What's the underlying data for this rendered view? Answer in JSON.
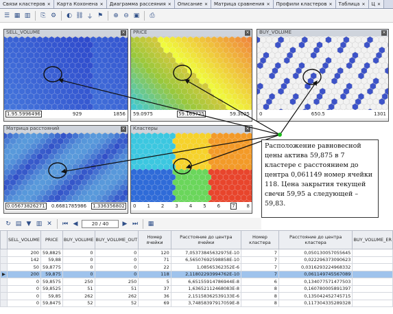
{
  "tabs": [
    {
      "label": "Связи кластеров"
    },
    {
      "label": "Карта Кохонена"
    },
    {
      "label": "Диаграмма рассеяния"
    },
    {
      "label": "Описание"
    },
    {
      "label": "Матрица сравнения"
    },
    {
      "label": "Профили кластеров"
    },
    {
      "label": "Таблица"
    },
    {
      "label": "Ц"
    }
  ],
  "maps": {
    "sell": {
      "title": "SELL_VOLUME",
      "min": "1.95.5996496",
      "mid": "929",
      "max": "1856"
    },
    "price": {
      "title": "PRICE",
      "min": "59.0975",
      "mid": "59.163725",
      "max": "59.3025"
    },
    "buy": {
      "title": "BUY_VOLUME",
      "min": "0",
      "mid": "650.5",
      "max": "1301"
    },
    "dist": {
      "title": "Матрица расстояний",
      "min": "0.05673826271",
      "mid": "0.6681785986",
      "max": "1.336356802"
    },
    "clusters": {
      "title": "Кластеры",
      "ticks": [
        "0",
        "1",
        "2",
        "3",
        "4",
        "5",
        "6",
        "7",
        "8"
      ],
      "selected": "7"
    }
  },
  "callout": {
    "text": "Расположение равновесной цены актива 59,875 в 7 кластере с расстоянием до центра 0,061149 номер ячейки 118. Цена закрытия текущей свечи 59,95 а следующей – 59,83."
  },
  "gridbar": {
    "page": "20 / 40"
  },
  "grid": {
    "headers": [
      "SELL_VOLUME",
      "PRICE",
      "BUY_VOLUME",
      "BUY_VOLUME_OUT",
      "Номер ячейки",
      "Расстояние до центра ячейки",
      "Номер кластера",
      "Расстояние до центра кластера",
      "BUY_VOLUME_ER"
    ],
    "rows": [
      [
        "200",
        "59,8825",
        "0",
        "0",
        "120",
        "7,05373845632975E-10",
        "7",
        "0,050130057055645",
        ""
      ],
      [
        "142",
        "59,88",
        "0",
        "0",
        "71",
        "6,56507692598858E-10",
        "7",
        "0,022296373090623",
        ""
      ],
      [
        "50",
        "59,8775",
        "0",
        "0",
        "22",
        "1,08565362352E-6",
        "7",
        "0,0316293224968332",
        ""
      ],
      [
        "200",
        "59,875",
        "0",
        "0",
        "118",
        "2,11802293994762E-10",
        "7",
        "0,061149745567089",
        ""
      ],
      [
        "0",
        "59,8575",
        "250",
        "250",
        "5",
        "6,65155914786944E-8",
        "6",
        "0,134077571477503",
        ""
      ],
      [
        "0",
        "59,8525",
        "51",
        "51",
        "37",
        "1,63652112468083E-8",
        "8",
        "0,160780005891397",
        ""
      ],
      [
        "0",
        "59,85",
        "262",
        "262",
        "36",
        "2,15158362539133E-6",
        "8",
        "0,135042452745715",
        ""
      ],
      [
        "0",
        "59,8475",
        "52",
        "52",
        "69",
        "3,74858397917059E-8",
        "8",
        "0,117304335289328",
        ""
      ]
    ],
    "selected_row": 3
  }
}
